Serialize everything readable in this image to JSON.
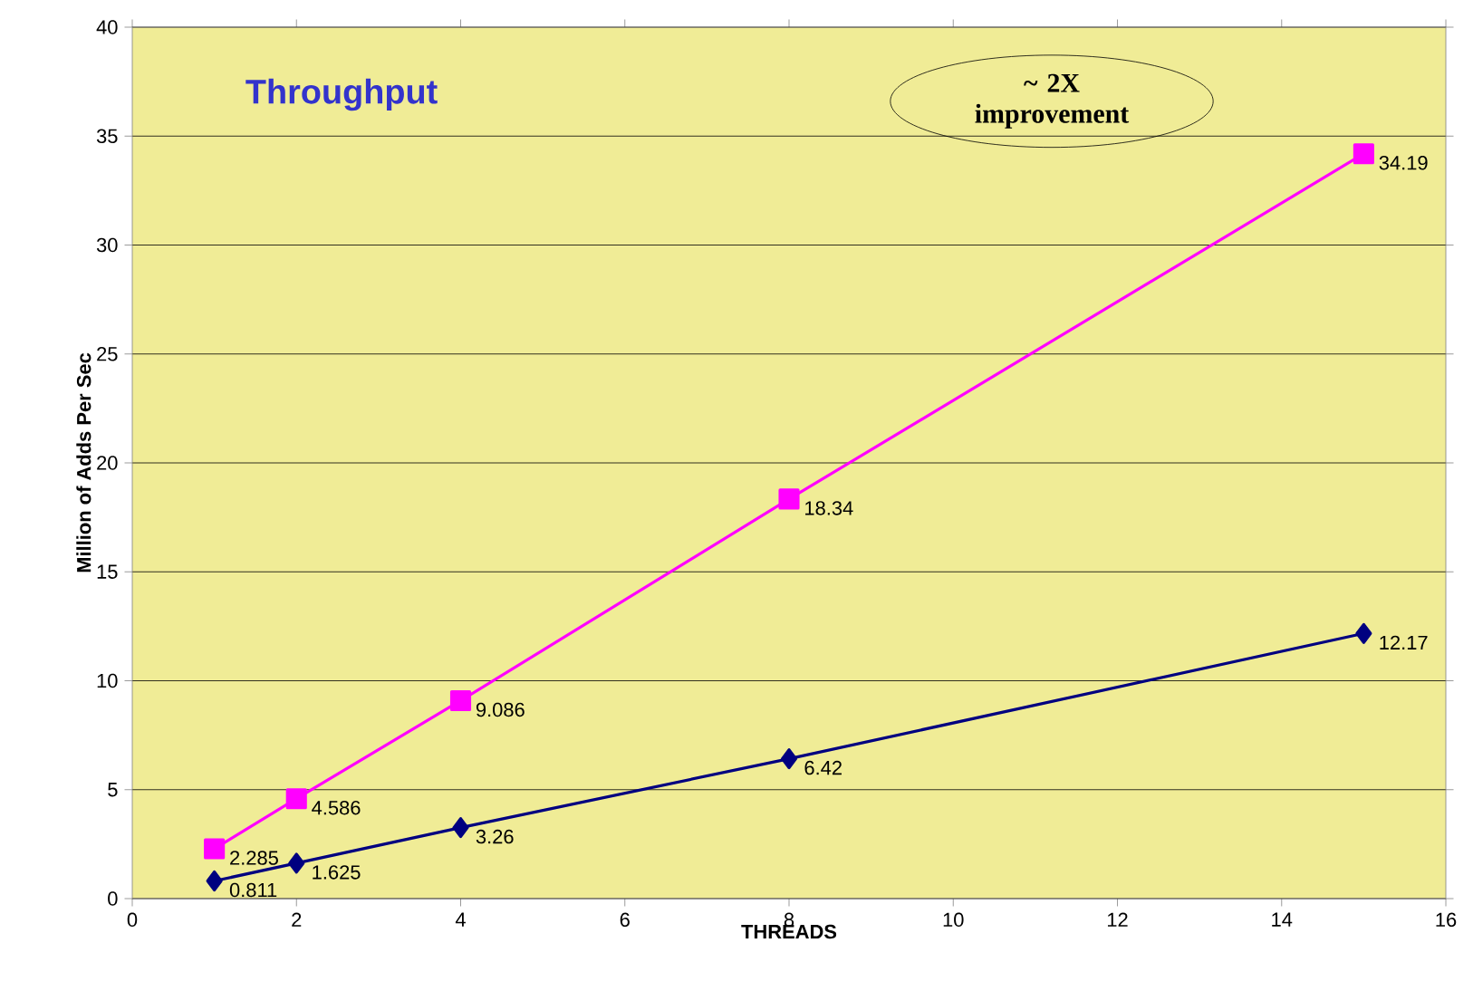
{
  "chart_data": {
    "type": "line",
    "title": "Throughput",
    "xlabel": "THREADS",
    "ylabel": "Million of Adds Per Sec",
    "annotations": [
      "~ 2X improvement"
    ],
    "series": [
      {
        "x": [
          1,
          2,
          4,
          8,
          15
        ],
        "values": [
          2.285,
          4.586,
          9.086,
          18.34,
          34.19
        ],
        "color": "#ff00ff",
        "marker": "square"
      },
      {
        "x": [
          1,
          2,
          4,
          8,
          15
        ],
        "values": [
          0.811,
          1.625,
          3.26,
          6.42,
          12.17
        ],
        "color": "#000080",
        "marker": "diamond"
      }
    ],
    "xlim": [
      0,
      16
    ],
    "xticks": [
      0,
      2,
      4,
      6,
      8,
      10,
      12,
      14,
      16
    ],
    "ylim": [
      0,
      40
    ],
    "yticks": [
      0,
      5,
      10,
      15,
      20,
      25,
      30,
      35,
      40
    ],
    "grid": "y",
    "data_labels": true,
    "line_style": "solid"
  }
}
